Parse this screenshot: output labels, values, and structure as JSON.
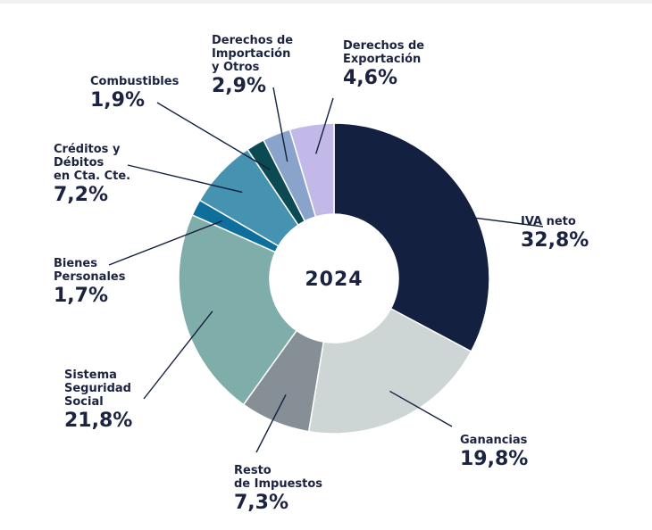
{
  "chart_data": {
    "type": "pie",
    "center_label": "2024",
    "slices": [
      {
        "name": "IVA neto",
        "value": 32.8,
        "label": "32,8%",
        "color": "#13203f"
      },
      {
        "name": "Ganancias",
        "value": 19.8,
        "label": "19,8%",
        "color": "#cdd5d5"
      },
      {
        "name": "Resto\nde Impuestos",
        "value": 7.3,
        "label": "7,3%",
        "color": "#878f96"
      },
      {
        "name": "Sistema\nSeguridad\nSocial",
        "value": 21.8,
        "label": "21,8%",
        "color": "#7fada9"
      },
      {
        "name": "Bienes\nPersonales",
        "value": 1.7,
        "label": "1,7%",
        "color": "#0f6f9c"
      },
      {
        "name": "Créditos y\nDébitos\nen Cta. Cte.",
        "value": 7.2,
        "label": "7,2%",
        "color": "#4592b1"
      },
      {
        "name": "Combustibles",
        "value": 1.9,
        "label": "1,9%",
        "color": "#0b4a52"
      },
      {
        "name": "Derechos de\nImportación\ny Otros",
        "value": 2.9,
        "label": "2,9%",
        "color": "#8aa3cb"
      },
      {
        "name": "Derechos de\nExportación",
        "value": 4.6,
        "label": "4,6%",
        "color": "#c3b9e9"
      }
    ]
  }
}
